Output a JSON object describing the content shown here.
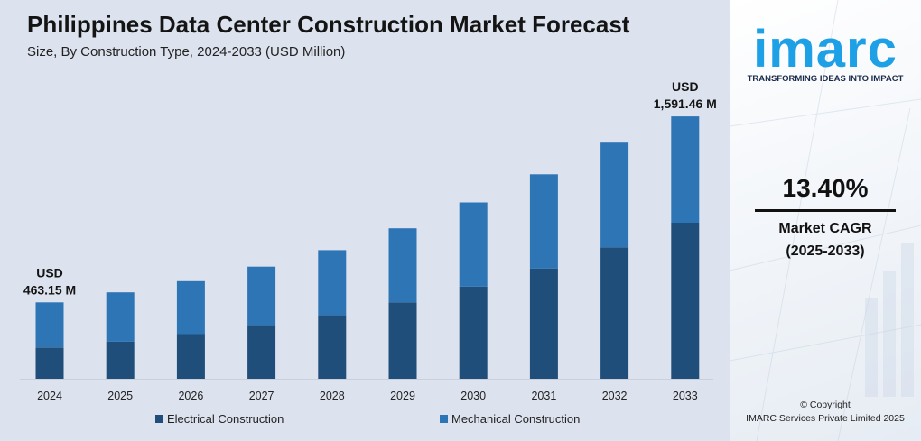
{
  "chart_data": {
    "type": "bar",
    "stacked": true,
    "title": "Philippines Data Center Construction Market Forecast",
    "subtitle": "Size, By Construction Type, 2024-2033 (USD Million)",
    "categories": [
      "2024",
      "2025",
      "2026",
      "2027",
      "2028",
      "2029",
      "2030",
      "2031",
      "2032",
      "2033"
    ],
    "series": [
      {
        "name": "Electrical Construction",
        "color": "#1f4e7a",
        "values": [
          190,
          225,
          271,
          325,
          385,
          463,
          559,
          669,
          797,
          946
        ]
      },
      {
        "name": "Mechanical Construction",
        "color": "#2e75b6",
        "values": [
          273,
          299,
          321,
          355,
          395,
          449,
          510,
          571,
          635,
          645
        ]
      }
    ],
    "annotations": [
      {
        "category": "2024",
        "line1": "USD",
        "line2": "463.15 M"
      },
      {
        "category": "2033",
        "line1": "USD",
        "line2": "1,591.46 M"
      }
    ],
    "ylim": [
      0,
      1591.46
    ],
    "grid": false,
    "legend": "bottom"
  },
  "side": {
    "logo": "imarc",
    "tagline": "TRANSFORMING IDEAS INTO IMPACT",
    "cagr_value": "13.40%",
    "cagr_label": "Market CAGR",
    "cagr_period": "(2025-2033)",
    "copyright": "© Copyright",
    "copyright_org": "IMARC Services Private Limited 2025"
  }
}
